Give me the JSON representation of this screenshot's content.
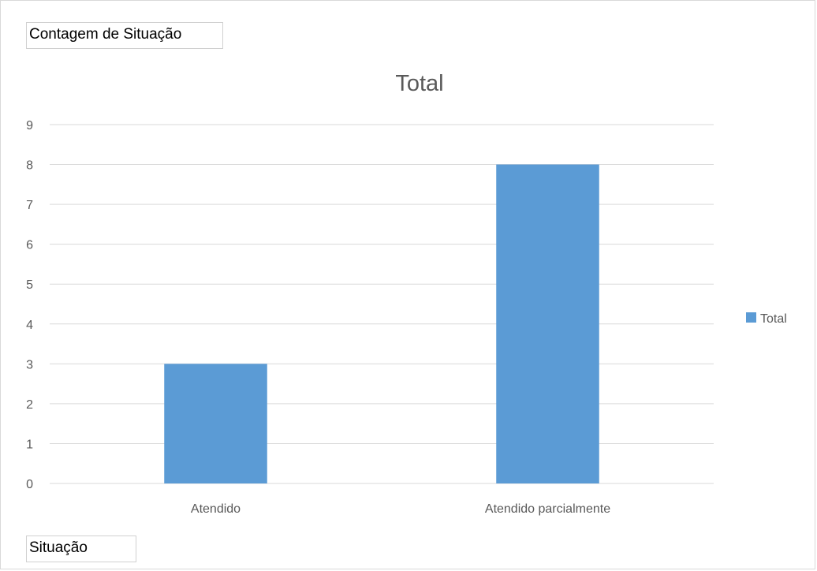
{
  "pivot": {
    "value_field_label": "Contagem de Situação",
    "axis_field_label": "Situação"
  },
  "chart_data": {
    "type": "bar",
    "title": "Total",
    "categories": [
      "Atendido",
      "Atendido parcialmente"
    ],
    "series": [
      {
        "name": "Total",
        "values": [
          3,
          8
        ],
        "color": "#5b9bd5"
      }
    ],
    "ylim": [
      0,
      9
    ],
    "yticks": [
      0,
      1,
      2,
      3,
      4,
      5,
      6,
      7,
      8,
      9
    ],
    "grid": true,
    "legend_position": "right"
  }
}
